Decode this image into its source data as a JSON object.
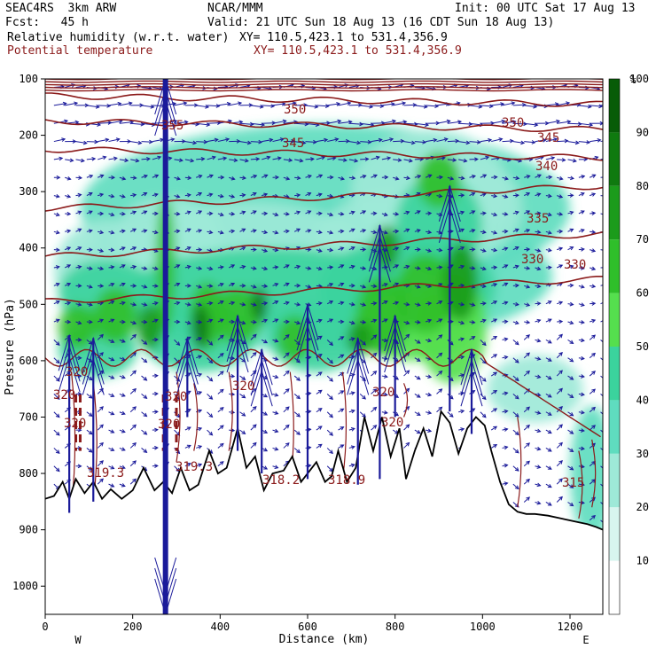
{
  "header": {
    "model": "SEAC4RS  3km ARW",
    "institution": "NCAR/MMM",
    "init": "Init: 00 UTC Sat 17 Aug 13",
    "fcst": "Fcst:   45 h",
    "valid": "Valid: 21 UTC Sun 18 Aug 13 (16 CDT Sun 18 Aug 13)",
    "field1": "Relative humidity (w.r.t. water)",
    "field1_xy": "XY= 110.5,423.1 to 531.4,356.9",
    "field2": "Potential temperature",
    "field2_xy": "XY= 110.5,423.1 to 531.4,356.9"
  },
  "colors": {
    "theta": "#8b1a1a",
    "wind": "#1a1a9a",
    "terrain": "#000000",
    "rh": [
      "#ffffff",
      "#d8f5ef",
      "#9ee9d8",
      "#5fdcbf",
      "#3bd39d",
      "#55df4e",
      "#2fbf2a",
      "#1b9b1b",
      "#0f7a0f",
      "#075c07"
    ]
  },
  "chart_data": {
    "type": "heatmap",
    "xlabel": "Distance (km)",
    "ylabel": "Pressure (hPa)",
    "xlim": [
      0,
      1275
    ],
    "ylim": [
      1050,
      100
    ],
    "x_ticks": [
      "0",
      "200",
      "400",
      "600",
      "800",
      "1000",
      "1200"
    ],
    "y_ticks": [
      "100",
      "200",
      "300",
      "400",
      "500",
      "600",
      "700",
      "800",
      "900",
      "1000"
    ],
    "x_end_labels": {
      "left": "W",
      "right": "E"
    },
    "colorbar": {
      "unit": "%",
      "ticks": [
        "10",
        "20",
        "30",
        "40",
        "50",
        "60",
        "70",
        "80",
        "90",
        "100"
      ]
    },
    "theta_labels": [
      "350",
      "355",
      "350",
      "345",
      "345",
      "340",
      "335",
      "330",
      "330",
      "320",
      "320",
      "320",
      "320",
      "320",
      "320",
      "320",
      "320",
      "319.3",
      "319.3",
      "318.2",
      "318.9",
      "315"
    ],
    "theta_levels": [
      {
        "value": 350,
        "pressure": 130
      },
      {
        "value": 345,
        "pressure": 175
      },
      {
        "value": 340,
        "pressure": 225
      },
      {
        "value": 335,
        "pressure": 310
      },
      {
        "value": 330,
        "pressure": 395
      },
      {
        "value": 325,
        "pressure": 475
      }
    ],
    "terrain_surface": {
      "x": [
        0,
        20,
        40,
        55,
        70,
        90,
        110,
        130,
        150,
        175,
        200,
        225,
        250,
        270,
        290,
        310,
        330,
        350,
        375,
        395,
        415,
        440,
        460,
        480,
        500,
        520,
        545,
        565,
        585,
        600,
        620,
        640,
        655,
        670,
        690,
        710,
        730,
        750,
        770,
        790,
        810,
        825,
        845,
        865,
        885,
        905,
        925,
        945,
        965,
        985,
        1005,
        1020,
        1040,
        1060,
        1080,
        1100,
        1120,
        1150,
        1180,
        1210,
        1240,
        1260,
        1275
      ],
      "pressure": [
        845,
        840,
        815,
        845,
        810,
        835,
        815,
        845,
        828,
        845,
        830,
        790,
        830,
        815,
        835,
        790,
        830,
        820,
        760,
        800,
        790,
        720,
        790,
        770,
        830,
        800,
        795,
        770,
        815,
        800,
        780,
        815,
        805,
        760,
        815,
        790,
        700,
        760,
        700,
        770,
        720,
        810,
        760,
        720,
        770,
        690,
        710,
        765,
        720,
        700,
        715,
        760,
        815,
        855,
        868,
        872,
        872,
        875,
        880,
        885,
        890,
        895,
        900
      ]
    },
    "updrafts": [
      {
        "x": 55,
        "top": 555,
        "bottom": 870
      },
      {
        "x": 110,
        "top": 560,
        "bottom": 850
      },
      {
        "x": 275,
        "top": 100,
        "bottom": 1050
      },
      {
        "x": 325,
        "top": 560,
        "bottom": 700
      },
      {
        "x": 440,
        "top": 520,
        "bottom": 760
      },
      {
        "x": 495,
        "top": 580,
        "bottom": 800
      },
      {
        "x": 600,
        "top": 500,
        "bottom": 810
      },
      {
        "x": 715,
        "top": 560,
        "bottom": 820
      },
      {
        "x": 765,
        "top": 360,
        "bottom": 810
      },
      {
        "x": 800,
        "top": 520,
        "bottom": 700
      },
      {
        "x": 925,
        "top": 290,
        "bottom": 690
      },
      {
        "x": 975,
        "top": 580,
        "bottom": 730
      }
    ]
  }
}
